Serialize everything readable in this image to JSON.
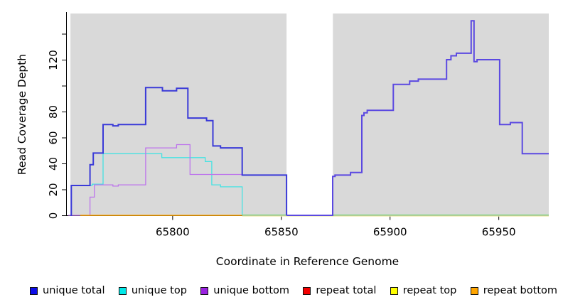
{
  "chart_data": {
    "type": "line",
    "title": "",
    "xlabel": "Coordinate in Reference Genome",
    "ylabel": "Read Coverage Depth",
    "xlim": [
      65751,
      65973
    ],
    "ylim": [
      0,
      155
    ],
    "grid": false,
    "plot_bg": "#d9d9d9",
    "x_ticks": [
      {
        "v": 65800,
        "label": "65800"
      },
      {
        "v": 65850,
        "label": "65850"
      },
      {
        "v": 65900,
        "label": "65900"
      },
      {
        "v": 65950,
        "label": "65950"
      }
    ],
    "y_ticks": [
      {
        "v": 0,
        "label": "0"
      },
      {
        "v": 20,
        "label": "20"
      },
      {
        "v": 40,
        "label": "40"
      },
      {
        "v": 60,
        "label": "60"
      },
      {
        "v": 80,
        "label": "80"
      },
      {
        "v": 100,
        "label": ""
      },
      {
        "v": 120,
        "label": "120"
      },
      {
        "v": 140,
        "label": ""
      }
    ],
    "coverage_regions": [
      [
        65753,
        65852.4
      ],
      [
        65873.7,
        65973
      ]
    ],
    "uncovered_gap": [
      65852.4,
      65873.7
    ],
    "series": [
      {
        "name": "repeat-top-baseline",
        "color": "#f0eeb2",
        "width": 1.4,
        "dy": 1.0,
        "points": [
          [
            65832,
            0
          ],
          [
            65973,
            0
          ]
        ]
      },
      {
        "name": "zero-overlap-green-left",
        "color": "#8fd890",
        "width": 1.4,
        "dy": -0.5,
        "points": [
          [
            65832,
            0
          ],
          [
            65852.4,
            0
          ]
        ]
      },
      {
        "name": "zero-overlap-green-right",
        "color": "#8fd890",
        "width": 1.4,
        "dy": -0.5,
        "points": [
          [
            65873.7,
            0
          ],
          [
            65973,
            0
          ]
        ]
      },
      {
        "name": "unique-top",
        "color": "#45e2e2",
        "width": 1.3,
        "dy": 0,
        "points": [
          [
            65753,
            0
          ],
          [
            65753.4,
            23
          ],
          [
            65763,
            24
          ],
          [
            65768,
            47.5
          ],
          [
            65795,
            44.5
          ],
          [
            65815,
            41.5
          ],
          [
            65818,
            23.5
          ],
          [
            65822,
            22
          ],
          [
            65832,
            0
          ]
        ]
      },
      {
        "name": "unique-bottom",
        "color": "#bd74ec",
        "width": 1.3,
        "dy": 0,
        "points": [
          [
            65752,
            0
          ],
          [
            65762,
            14
          ],
          [
            65764,
            23.5
          ],
          [
            65772.5,
            22.5
          ],
          [
            65775,
            23.5
          ],
          [
            65787.6,
            52
          ],
          [
            65801.8,
            54.5
          ],
          [
            65808,
            31.5
          ],
          [
            65832,
            31
          ],
          [
            65852.4,
            0
          ]
        ]
      },
      {
        "name": "repeat-bottom",
        "color": "#ffa500",
        "width": 1.5,
        "dy": 0,
        "points": [
          [
            65757.5,
            0
          ],
          [
            65832,
            0
          ]
        ]
      },
      {
        "name": "unique-total-left",
        "color": "#3a3ad8",
        "width": 2,
        "dy": 0,
        "points": [
          [
            65753,
            0
          ],
          [
            65753.4,
            23
          ],
          [
            65762,
            39
          ],
          [
            65763.5,
            48
          ],
          [
            65768,
            70
          ],
          [
            65772.5,
            69
          ],
          [
            65775,
            70
          ],
          [
            65787.6,
            98.5
          ],
          [
            65795.3,
            96
          ],
          [
            65801.8,
            98
          ],
          [
            65807,
            75
          ],
          [
            65815.6,
            73
          ],
          [
            65818.5,
            53.5
          ],
          [
            65822,
            52
          ],
          [
            65832,
            31
          ],
          [
            65852.4,
            0
          ]
        ]
      },
      {
        "name": "unique-total-right",
        "color": "#5b49e1",
        "width": 2,
        "dy": 0,
        "points": [
          [
            65852.4,
            0
          ],
          [
            65873.6,
            30
          ],
          [
            65874.7,
            31
          ],
          [
            65881.8,
            33
          ],
          [
            65887,
            77
          ],
          [
            65888,
            79
          ],
          [
            65889.5,
            81
          ],
          [
            65901.5,
            101
          ],
          [
            65909,
            103.5
          ],
          [
            65913,
            105
          ],
          [
            65926,
            120
          ],
          [
            65928,
            123
          ],
          [
            65930.5,
            125
          ],
          [
            65937.3,
            150
          ],
          [
            65938.6,
            118.5
          ],
          [
            65940,
            120
          ],
          [
            65950.4,
            70
          ],
          [
            65955.3,
            71.5
          ],
          [
            65960.8,
            47.5
          ],
          [
            65973,
            47.5
          ]
        ]
      }
    ],
    "legend": [
      {
        "label": "unique total",
        "color": "#0d0de8"
      },
      {
        "label": "unique top",
        "color": "#00e8e8"
      },
      {
        "label": "unique bottom",
        "color": "#9a22e0"
      },
      {
        "label": "repeat total",
        "color": "#f40000"
      },
      {
        "label": "repeat top",
        "color": "#ffff00"
      },
      {
        "label": "repeat bottom",
        "color": "#ffa500"
      }
    ]
  }
}
